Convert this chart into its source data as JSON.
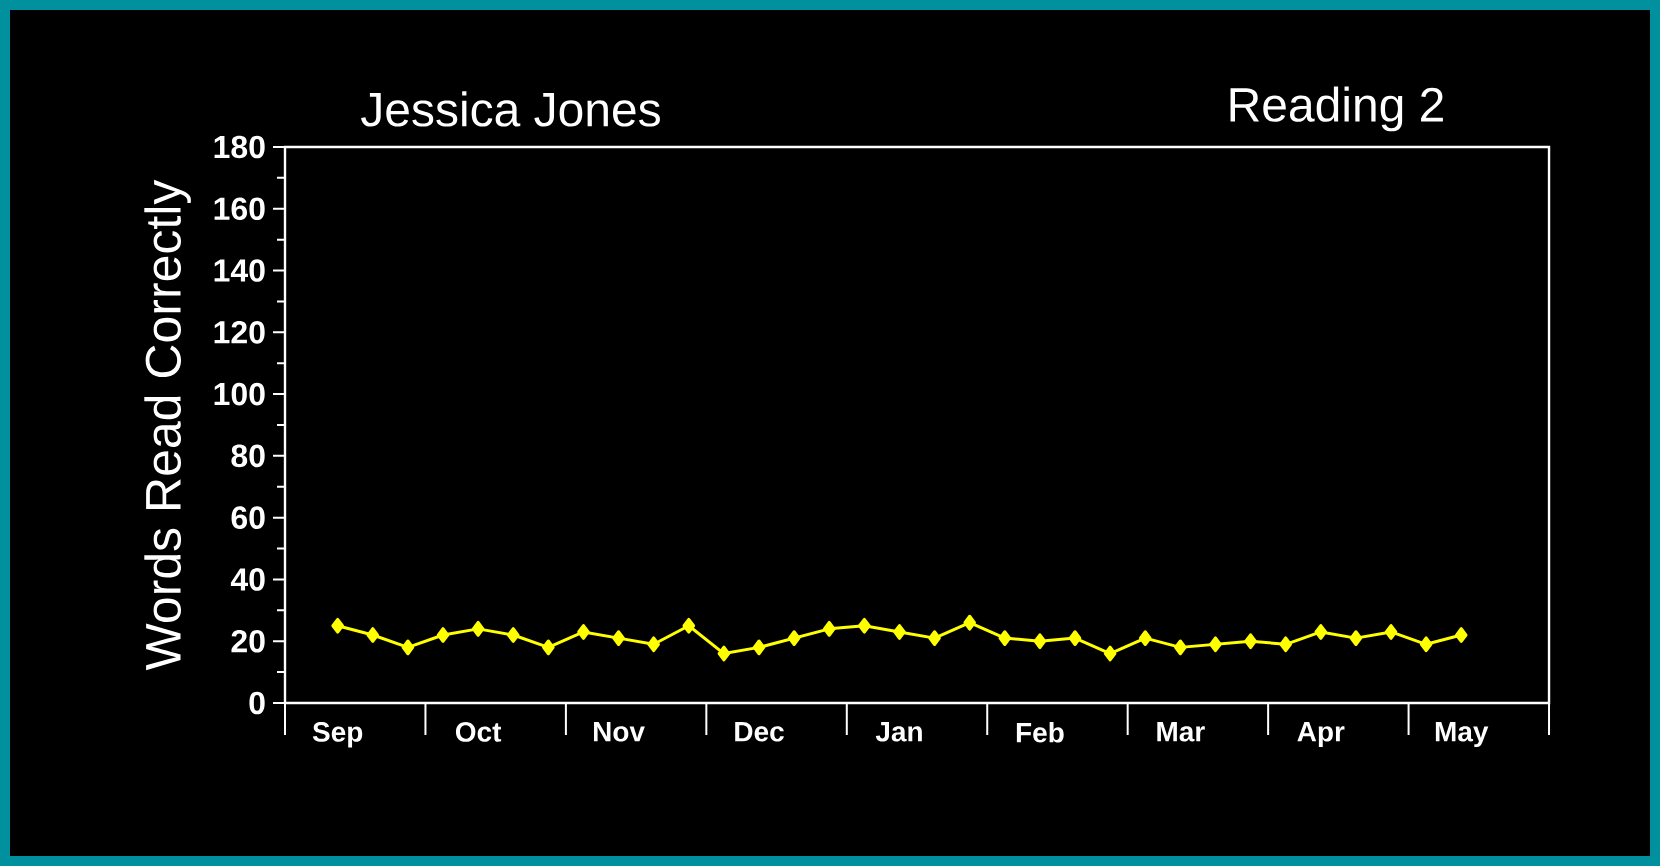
{
  "chart_data": {
    "type": "line",
    "title": "Jessica Jones",
    "subtitle": "Reading 2",
    "ylabel": "Words Read Correctly",
    "categories": [
      null,
      "Sep",
      null,
      null,
      null,
      "Oct",
      null,
      null,
      null,
      "Nov",
      null,
      null,
      null,
      "Dec",
      null,
      null,
      null,
      "Jan",
      null,
      null,
      null,
      "Feb",
      null,
      null,
      null,
      "Mar",
      null,
      null,
      null,
      "Apr",
      null,
      null,
      null,
      "May",
      null,
      null
    ],
    "series": [
      {
        "color": "#ffff00",
        "values": [
          null,
          25,
          22,
          18,
          22,
          24,
          22,
          18,
          23,
          21,
          19,
          25,
          16,
          18,
          21,
          24,
          25,
          23,
          21,
          26,
          21,
          20,
          21,
          16,
          21,
          18,
          19,
          20,
          19,
          23,
          21,
          23,
          19,
          22,
          null,
          null
        ]
      }
    ],
    "ylim": [
      0,
      180
    ],
    "yticks": [
      0,
      20,
      40,
      60,
      80,
      100,
      120,
      140,
      160,
      180
    ],
    "marker": "diamond",
    "line_style": "solid"
  }
}
